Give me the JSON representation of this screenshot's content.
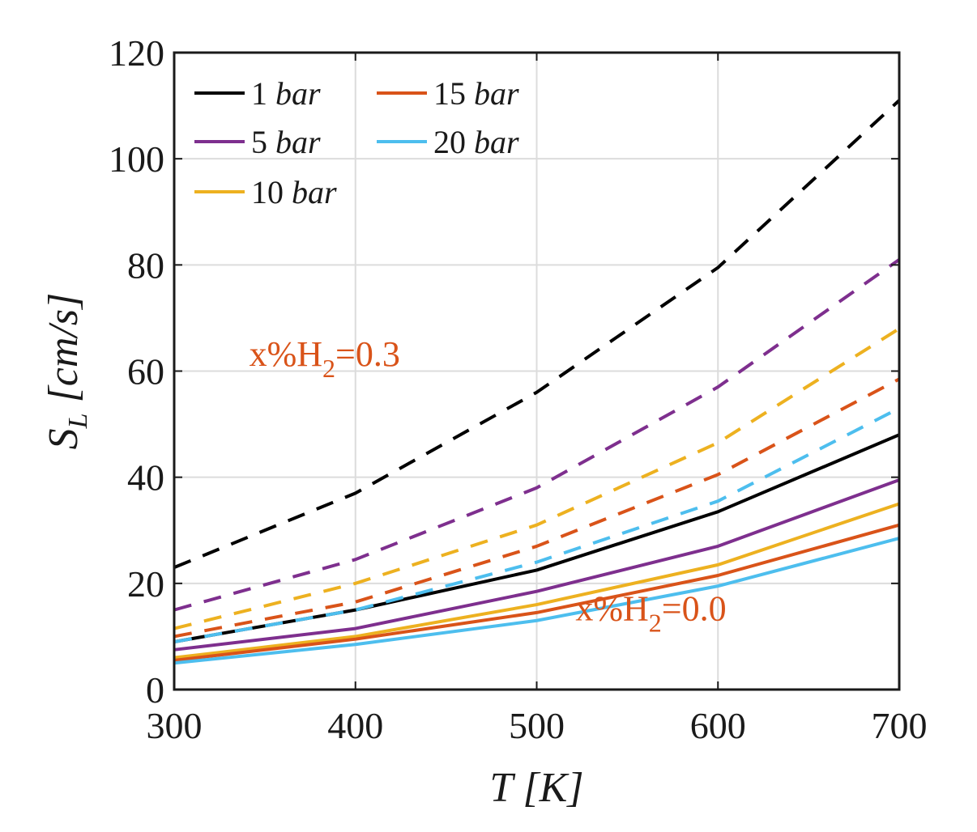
{
  "chart_data": {
    "type": "line",
    "xlabel": "T [K]",
    "ylabel": "S_L [cm/s]",
    "xlim": [
      300,
      700
    ],
    "ylim": [
      0,
      120
    ],
    "xticks": [
      300,
      400,
      500,
      600,
      700
    ],
    "yticks": [
      0,
      20,
      40,
      60,
      80,
      100,
      120
    ],
    "grid": true,
    "legend_position": "top-left",
    "x": [
      300,
      400,
      500,
      600,
      700
    ],
    "series": [
      {
        "name": "1 bar",
        "pressure": "1",
        "unit": "bar",
        "color": "#000000",
        "group": "x%H2=0.0",
        "dashed": false,
        "values": [
          9,
          15,
          22.5,
          33.5,
          48
        ]
      },
      {
        "name": "5 bar",
        "pressure": "5",
        "unit": "bar",
        "color": "#7E2F8E",
        "group": "x%H2=0.0",
        "dashed": false,
        "values": [
          7.5,
          11.5,
          18.5,
          27,
          39.5
        ]
      },
      {
        "name": "10 bar",
        "pressure": "10",
        "unit": "bar",
        "color": "#EDB120",
        "group": "x%H2=0.0",
        "dashed": false,
        "values": [
          6,
          10,
          16,
          23.5,
          35
        ]
      },
      {
        "name": "15 bar",
        "pressure": "15",
        "unit": "bar",
        "color": "#D95319",
        "group": "x%H2=0.0",
        "dashed": false,
        "values": [
          5.5,
          9.5,
          14.5,
          21.5,
          31
        ]
      },
      {
        "name": "20 bar",
        "pressure": "20",
        "unit": "bar",
        "color": "#4DBEEE",
        "group": "x%H2=0.0",
        "dashed": false,
        "values": [
          5,
          8.5,
          13,
          19.5,
          28.5
        ]
      },
      {
        "name": "1 bar",
        "pressure": "1",
        "unit": "bar",
        "color": "#000000",
        "group": "x%H2=0.3",
        "dashed": true,
        "values": [
          23,
          37,
          56,
          79.5,
          111
        ]
      },
      {
        "name": "5 bar",
        "pressure": "5",
        "unit": "bar",
        "color": "#7E2F8E",
        "group": "x%H2=0.3",
        "dashed": true,
        "values": [
          15,
          24.5,
          38,
          57,
          81
        ]
      },
      {
        "name": "10 bar",
        "pressure": "10",
        "unit": "bar",
        "color": "#EDB120",
        "group": "x%H2=0.3",
        "dashed": true,
        "values": [
          11.5,
          20,
          31,
          46.5,
          68
        ]
      },
      {
        "name": "15 bar",
        "pressure": "15",
        "unit": "bar",
        "color": "#D95319",
        "group": "x%H2=0.3",
        "dashed": true,
        "values": [
          10,
          16.5,
          27,
          40.5,
          58.5
        ]
      },
      {
        "name": "20 bar",
        "pressure": "20",
        "unit": "bar",
        "color": "#4DBEEE",
        "group": "x%H2=0.3",
        "dashed": true,
        "values": [
          9,
          15,
          24,
          35.5,
          53
        ]
      }
    ],
    "legend": [
      {
        "label_num": "1",
        "label_unit": "bar",
        "color": "#000000"
      },
      {
        "label_num": "5",
        "label_unit": "bar",
        "color": "#7E2F8E"
      },
      {
        "label_num": "10",
        "label_unit": "bar",
        "color": "#EDB120"
      },
      {
        "label_num": "15",
        "label_unit": "bar",
        "color": "#D95319"
      },
      {
        "label_num": "20",
        "label_unit": "bar",
        "color": "#4DBEEE"
      }
    ],
    "annotations": [
      {
        "id": "h2-high",
        "prefix": "x%H",
        "sub": "2",
        "suffix": "=0.3",
        "color": "#D95319",
        "x": 383,
        "y": 61
      },
      {
        "id": "h2-low",
        "prefix": "x%H",
        "sub": "2",
        "suffix": "=0.0",
        "color": "#D95319",
        "x": 563,
        "y": 13
      }
    ]
  }
}
